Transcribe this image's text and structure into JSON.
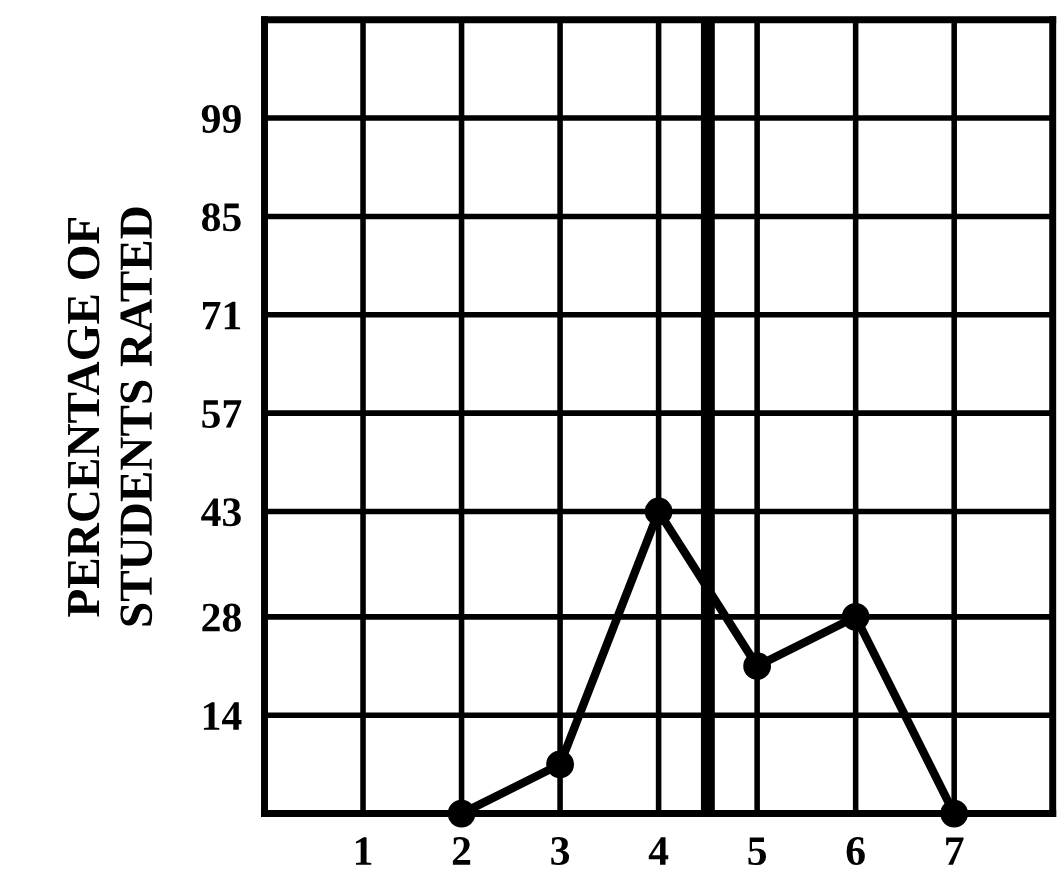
{
  "chart_data": {
    "type": "line",
    "ylabel": "PERCENTAGE OF\nSTUDENTS RATED",
    "x": [
      2,
      3,
      4,
      5,
      6,
      7
    ],
    "series": [
      {
        "color": "#000000",
        "values": [
          0,
          7,
          43,
          21,
          28,
          0
        ]
      }
    ],
    "xlim": [
      0,
      8
    ],
    "xticks": [
      {
        "value": 0,
        "label": null
      },
      1,
      2,
      3,
      4,
      5,
      6,
      7,
      {
        "value": 8,
        "label": null
      }
    ],
    "ylim": [
      0,
      113
    ],
    "yticks": [
      {
        "value": 0,
        "label": null
      },
      14,
      28,
      43,
      57,
      71,
      85,
      99
    ],
    "ref_lines": [
      {
        "axis": "x",
        "value": 4.5,
        "color": "#000000"
      }
    ],
    "grid": true,
    "marker": "circle",
    "line_style": "solid"
  }
}
